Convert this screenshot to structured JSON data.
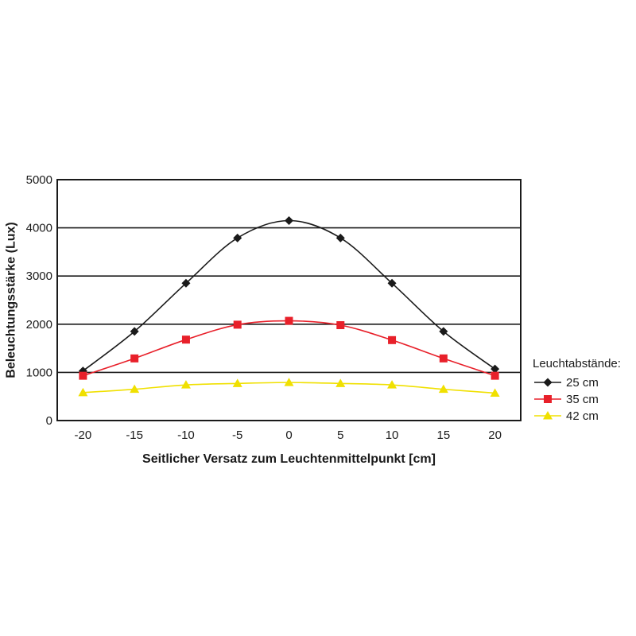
{
  "chart_data": {
    "type": "line",
    "title": "",
    "xlabel": "Seitlicher Versatz zum Leuchtenmittelpunkt [cm]",
    "ylabel": "Beleuchtungsstärke (Lux)",
    "x": [
      -20,
      -15,
      -10,
      -5,
      0,
      5,
      10,
      15,
      20
    ],
    "x_tick_labels": [
      "-20",
      "-15",
      "-10",
      "-5",
      "0",
      "5",
      "10",
      "15",
      "20"
    ],
    "y_tick_labels": [
      "0",
      "1000",
      "2000",
      "3000",
      "4000",
      "5000"
    ],
    "y_ticks": [
      0,
      1000,
      2000,
      3000,
      4000,
      5000
    ],
    "xlim": [
      -22.5,
      22.5
    ],
    "ylim": [
      0,
      5000
    ],
    "grid": "horizontal",
    "legend_position": "right",
    "legend_title": "Leuchtabstände:",
    "series": [
      {
        "name": "25 cm",
        "color": "#1a1a1a",
        "marker": "diamond",
        "values": [
          1030,
          1850,
          2850,
          3790,
          4150,
          3790,
          2850,
          1850,
          1070
        ]
      },
      {
        "name": "35 cm",
        "color": "#e8202a",
        "marker": "square",
        "values": [
          930,
          1290,
          1680,
          1990,
          2070,
          1980,
          1670,
          1290,
          930
        ]
      },
      {
        "name": "42 cm",
        "color": "#f0e000",
        "marker": "triangle",
        "values": [
          580,
          650,
          740,
          770,
          790,
          770,
          740,
          650,
          570
        ]
      }
    ]
  }
}
